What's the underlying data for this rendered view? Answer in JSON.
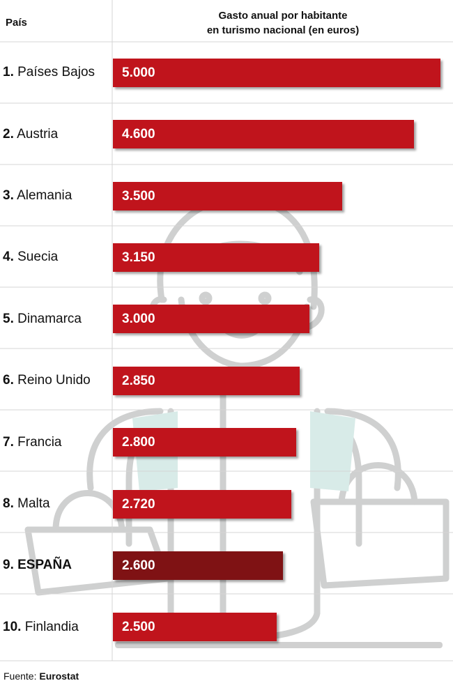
{
  "header": {
    "country": "País",
    "value_line1": "Gasto anual por habitante",
    "value_line2": "en turismo nacional (en euros)"
  },
  "source": {
    "prefix": "Fuente:",
    "name": "Eurostat"
  },
  "colors": {
    "bar": "#c0141c",
    "highlight": "#7f1214",
    "text_on_bar": "#ffffff"
  },
  "chart_data": {
    "type": "bar",
    "orientation": "horizontal",
    "title": "",
    "xlabel": "Gasto anual por habitante en turismo nacional (en euros)",
    "ylabel": "País",
    "xlim": [
      0,
      5000
    ],
    "grid": false,
    "legend": "none",
    "categories": [
      "Países Bajos",
      "Austria",
      "Alemania",
      "Suecia",
      "Dinamarca",
      "Reino Unido",
      "Francia",
      "Malta",
      "ESPAÑA",
      "Finlandia"
    ],
    "ranks": [
      "1.",
      "2.",
      "3.",
      "4.",
      "5.",
      "6.",
      "7.",
      "8.",
      "9.",
      "10."
    ],
    "values": [
      5000,
      4600,
      3500,
      3150,
      3000,
      2850,
      2800,
      2720,
      2600,
      2500
    ],
    "value_labels": [
      "5.000",
      "4.600",
      "3.500",
      "3.150",
      "3.000",
      "2.850",
      "2.800",
      "2.720",
      "2.600",
      "2.500"
    ],
    "highlight_index": 8
  }
}
